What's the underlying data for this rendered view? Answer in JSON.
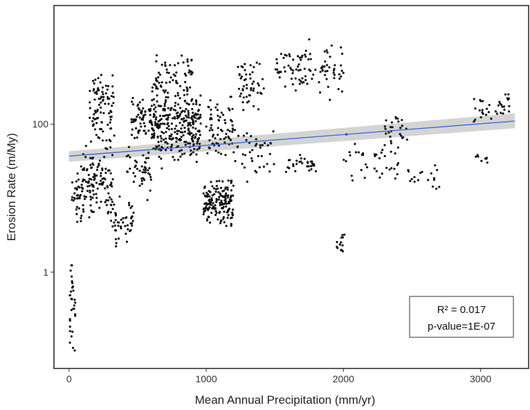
{
  "chart_data": {
    "type": "scatter",
    "xlabel": "Mean Annual Precipitation  (mm/yr)",
    "ylabel": "Erosion Rate (m/My)",
    "x_ticks": [
      0,
      1000,
      2000,
      3000
    ],
    "y_ticks": [
      1,
      100
    ],
    "y_scale": "log10",
    "xlim": [
      -110,
      3350
    ],
    "ylim": [
      0.05,
      4000
    ],
    "grid": false,
    "point_color": "#111111",
    "fit_line": {
      "x_start": 0,
      "x_end": 3250,
      "y_start": 37,
      "y_end": 110,
      "color": "#3a6fd8",
      "band_color": "#c9c9c9",
      "band_lower_start": 31,
      "band_upper_start": 43,
      "band_lower_end": 88,
      "band_upper_end": 140
    },
    "annotation": {
      "r2_label": "R² = 0.017",
      "p_label": "p-value=1E-07"
    },
    "clusters": [
      {
        "x": [
          5,
          45
        ],
        "y": [
          0.07,
          1.8
        ],
        "n": 32
      },
      {
        "x": [
          20,
          120
        ],
        "y": [
          4,
          30
        ],
        "n": 40
      },
      {
        "x": [
          90,
          320
        ],
        "y": [
          5,
          60
        ],
        "n": 110
      },
      {
        "x": [
          150,
          330
        ],
        "y": [
          40,
          600
        ],
        "n": 90
      },
      {
        "x": [
          300,
          470
        ],
        "y": [
          2,
          12
        ],
        "n": 50
      },
      {
        "x": [
          450,
          600
        ],
        "y": [
          60,
          250
        ],
        "n": 60
      },
      {
        "x": [
          420,
          600
        ],
        "y": [
          8,
          60
        ],
        "n": 45
      },
      {
        "x": [
          600,
          960
        ],
        "y": [
          25,
          400
        ],
        "n": 300
      },
      {
        "x": [
          620,
          900
        ],
        "y": [
          200,
          1000
        ],
        "n": 60
      },
      {
        "x": [
          980,
          1200
        ],
        "y": [
          4,
          20
        ],
        "n": 160
      },
      {
        "x": [
          1000,
          1200
        ],
        "y": [
          30,
          250
        ],
        "n": 70
      },
      {
        "x": [
          1230,
          1420
        ],
        "y": [
          150,
          900
        ],
        "n": 50
      },
      {
        "x": [
          1200,
          1500
        ],
        "y": [
          15,
          120
        ],
        "n": 40
      },
      {
        "x": [
          1500,
          1760
        ],
        "y": [
          250,
          1300
        ],
        "n": 55
      },
      {
        "x": [
          1580,
          1800
        ],
        "y": [
          20,
          40
        ],
        "n": 30
      },
      {
        "x": [
          1750,
          2000
        ],
        "y": [
          200,
          1500
        ],
        "n": 45
      },
      {
        "x": [
          1950,
          2010
        ],
        "y": [
          1.6,
          4
        ],
        "n": 14
      },
      {
        "x": [
          2000,
          2400
        ],
        "y": [
          15,
          80
        ],
        "n": 40
      },
      {
        "x": [
          2300,
          2470
        ],
        "y": [
          50,
          150
        ],
        "n": 25
      },
      {
        "x": [
          2470,
          2700
        ],
        "y": [
          12,
          30
        ],
        "n": 18
      },
      {
        "x": [
          2950,
          3230
        ],
        "y": [
          100,
          280
        ],
        "n": 35
      },
      {
        "x": [
          2950,
          3050
        ],
        "y": [
          28,
          45
        ],
        "n": 8
      }
    ]
  }
}
